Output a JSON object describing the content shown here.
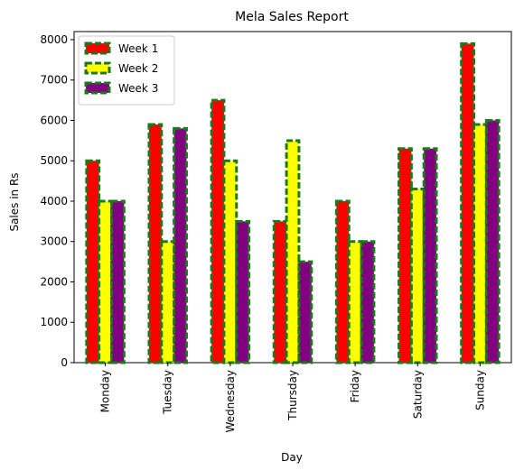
{
  "chart_data": {
    "type": "bar",
    "title": "Mela Sales Report",
    "xlabel": "Day",
    "ylabel": "Sales in Rs",
    "categories": [
      "Monday",
      "Tuesday",
      "Wednesday",
      "Thursday",
      "Friday",
      "Saturday",
      "Sunday"
    ],
    "series": [
      {
        "name": "Week 1",
        "values": [
          5000,
          5900,
          6500,
          3500,
          4000,
          5300,
          7900
        ],
        "color": "#ff0000"
      },
      {
        "name": "Week 2",
        "values": [
          4000,
          3000,
          5000,
          5500,
          3000,
          4300,
          5900
        ],
        "color": "#ffff00"
      },
      {
        "name": "Week 3",
        "values": [
          4000,
          5800,
          3500,
          2500,
          3000,
          5300,
          6000
        ],
        "color": "#800080"
      }
    ],
    "edge_color": "#1a7a1a",
    "edge_style": "dashed",
    "ylim": [
      0,
      8200
    ],
    "yticks": [
      0,
      1000,
      2000,
      3000,
      4000,
      5000,
      6000,
      7000,
      8000
    ],
    "legend": "top-left",
    "grid": false
  }
}
